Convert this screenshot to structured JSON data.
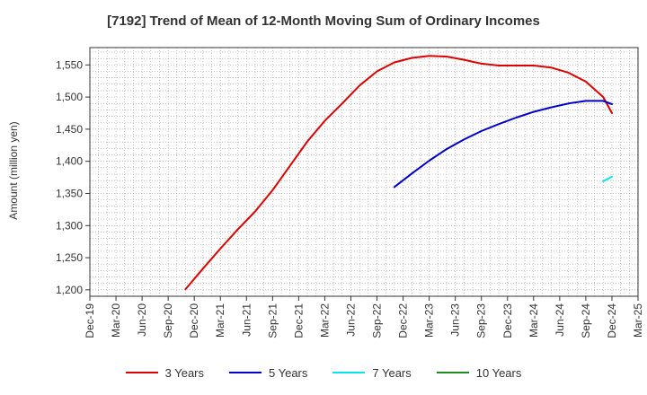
{
  "chart_data": {
    "type": "line",
    "title": "[7192]  Trend of Mean of 12-Month Moving Sum of Ordinary Incomes",
    "xlabel": "",
    "ylabel": "Amount (million yen)",
    "ylim": [
      1190,
      1577
    ],
    "yticks": [
      1200,
      1250,
      1300,
      1350,
      1400,
      1450,
      1500,
      1550
    ],
    "ytick_labels": [
      "1,200",
      "1,250",
      "1,300",
      "1,350",
      "1,400",
      "1,450",
      "1,500",
      "1,550"
    ],
    "xlim": [
      "2019-12",
      "2025-03"
    ],
    "xtick_labels": [
      "Dec-19",
      "Mar-20",
      "Jun-20",
      "Sep-20",
      "Dec-20",
      "Mar-21",
      "Jun-21",
      "Sep-21",
      "Dec-21",
      "Mar-22",
      "Jun-22",
      "Sep-22",
      "Dec-22",
      "Mar-23",
      "Jun-23",
      "Sep-23",
      "Dec-23",
      "Mar-24",
      "Jun-24",
      "Sep-24",
      "Dec-24",
      "Mar-25"
    ],
    "grid": true,
    "legend_position": "bottom",
    "series": [
      {
        "name": "3 Years",
        "color": "#dd0000",
        "points": [
          [
            "2020-11",
            1201
          ],
          [
            "2021-01",
            1233
          ],
          [
            "2021-03",
            1264
          ],
          [
            "2021-05",
            1294
          ],
          [
            "2021-07",
            1322
          ],
          [
            "2021-09",
            1355
          ],
          [
            "2021-11",
            1393
          ],
          [
            "2022-01",
            1431
          ],
          [
            "2022-03",
            1463
          ],
          [
            "2022-05",
            1490
          ],
          [
            "2022-07",
            1518
          ],
          [
            "2022-09",
            1540
          ],
          [
            "2022-11",
            1554
          ],
          [
            "2023-01",
            1561
          ],
          [
            "2023-03",
            1564
          ],
          [
            "2023-05",
            1563
          ],
          [
            "2023-07",
            1558
          ],
          [
            "2023-09",
            1552
          ],
          [
            "2023-11",
            1549
          ],
          [
            "2024-01",
            1549
          ],
          [
            "2024-03",
            1549
          ],
          [
            "2024-05",
            1546
          ],
          [
            "2024-07",
            1538
          ],
          [
            "2024-09",
            1524
          ],
          [
            "2024-11",
            1500
          ],
          [
            "2024-12",
            1475
          ]
        ]
      },
      {
        "name": "5 Years",
        "color": "#0000cc",
        "points": [
          [
            "2022-11",
            1360
          ],
          [
            "2023-01",
            1381
          ],
          [
            "2023-03",
            1401
          ],
          [
            "2023-05",
            1419
          ],
          [
            "2023-07",
            1434
          ],
          [
            "2023-09",
            1447
          ],
          [
            "2023-11",
            1458
          ],
          [
            "2024-01",
            1468
          ],
          [
            "2024-03",
            1477
          ],
          [
            "2024-05",
            1484
          ],
          [
            "2024-07",
            1490
          ],
          [
            "2024-09",
            1494
          ],
          [
            "2024-11",
            1494
          ],
          [
            "2024-12",
            1489
          ]
        ]
      },
      {
        "name": "7 Years",
        "color": "#00e5ee",
        "points": [
          [
            "2024-11",
            1369
          ],
          [
            "2024-12",
            1376
          ]
        ]
      },
      {
        "name": "10 Years",
        "color": "#228b22",
        "points": []
      }
    ]
  }
}
